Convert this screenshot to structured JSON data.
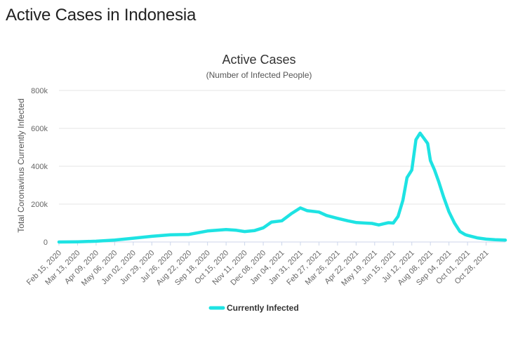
{
  "page": {
    "title": "Active Cases in Indonesia"
  },
  "colors": {
    "series": "#1ee3e3",
    "grid": "#e6e6e6",
    "axis": "#ccd6eb"
  },
  "chart_data": {
    "type": "line",
    "title": "Active Cases",
    "subtitle": "(Number of Infected People)",
    "ylabel": "Total Coronavirus Currently Infected",
    "ylim": [
      0,
      800000
    ],
    "yticks": [
      0,
      200000,
      400000,
      600000,
      800000
    ],
    "ytick_labels": [
      "0",
      "200k",
      "400k",
      "600k",
      "800k"
    ],
    "xtick_labels": [
      "Feb 15, 2020",
      "Mar 13, 2020",
      "Apr 09, 2020",
      "May 06, 2020",
      "Jun 02, 2020",
      "Jun 29, 2020",
      "Jul 26, 2020",
      "Aug 22, 2020",
      "Sep 18, 2020",
      "Oct 15, 2020",
      "Nov 11, 2020",
      "Dec 08, 2020",
      "Jan 04, 2021",
      "Jan 31, 2021",
      "Feb 27, 2021",
      "Mar 26, 2021",
      "Apr 22, 2021",
      "May 19, 2021",
      "Jun 15, 2021",
      "Jul 12, 2021",
      "Aug 08, 2021",
      "Sep 04, 2021",
      "Oct 01, 2021",
      "Oct 28, 2021"
    ],
    "grid": true,
    "legend": "bottom-center",
    "series": [
      {
        "name": "Currently Infected",
        "x": [
          "2020-02-15",
          "2020-03-13",
          "2020-04-09",
          "2020-05-06",
          "2020-06-02",
          "2020-06-29",
          "2020-07-26",
          "2020-08-22",
          "2020-09-18",
          "2020-10-15",
          "2020-10-30",
          "2020-11-11",
          "2020-11-25",
          "2020-12-08",
          "2020-12-20",
          "2021-01-04",
          "2021-01-18",
          "2021-01-31",
          "2021-02-10",
          "2021-02-27",
          "2021-03-10",
          "2021-03-26",
          "2021-04-10",
          "2021-04-22",
          "2021-05-05",
          "2021-05-15",
          "2021-05-25",
          "2021-06-01",
          "2021-06-08",
          "2021-06-15",
          "2021-06-22",
          "2021-06-29",
          "2021-07-05",
          "2021-07-12",
          "2021-07-18",
          "2021-07-24",
          "2021-07-30",
          "2021-08-04",
          "2021-08-08",
          "2021-08-14",
          "2021-08-20",
          "2021-08-27",
          "2021-09-04",
          "2021-09-12",
          "2021-09-20",
          "2021-09-27",
          "2021-10-01",
          "2021-10-15",
          "2021-10-28",
          "2021-11-10",
          "2021-11-25"
        ],
        "y": [
          0,
          1000,
          4000,
          10000,
          20000,
          30000,
          38000,
          40000,
          58000,
          66000,
          62000,
          55000,
          60000,
          75000,
          105000,
          112000,
          150000,
          180000,
          165000,
          158000,
          140000,
          125000,
          112000,
          103000,
          100000,
          98000,
          90000,
          96000,
          102000,
          100000,
          135000,
          220000,
          340000,
          380000,
          540000,
          575000,
          545000,
          520000,
          430000,
          380000,
          320000,
          240000,
          160000,
          100000,
          55000,
          40000,
          35000,
          22000,
          15000,
          12000,
          10000
        ]
      }
    ]
  }
}
